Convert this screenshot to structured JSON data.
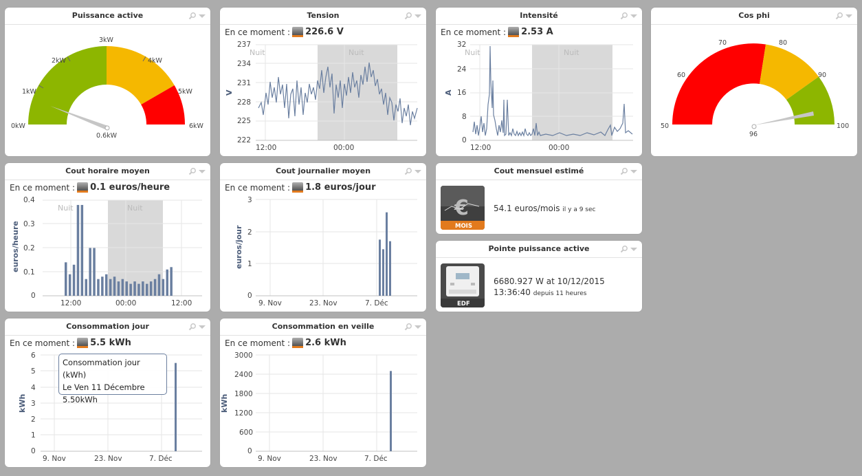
{
  "widgets": {
    "puissance": {
      "title": "Puissance active",
      "gauge_labels": [
        "0kW",
        "1kW",
        "2kW",
        "3kW",
        "4kW",
        "5kW",
        "6kW"
      ],
      "value_label": "0.6kW",
      "value": 0.6,
      "min": 0,
      "max": 6,
      "bands": [
        {
          "from": 0,
          "to": 3,
          "color": "#8db600"
        },
        {
          "from": 3,
          "to": 5,
          "color": "#f5b800"
        },
        {
          "from": 5,
          "to": 6,
          "color": "#ff0000"
        }
      ]
    },
    "tension": {
      "title": "Tension",
      "now_label": "En ce moment :",
      "now_value": "226.6 V",
      "ylabel": "V",
      "yticks": [
        "237",
        "234",
        "231",
        "228",
        "225",
        "222"
      ],
      "xticks": [
        "12:00",
        "00:00"
      ],
      "night_label": "Nuit"
    },
    "intensite": {
      "title": "Intensité",
      "now_label": "En ce moment :",
      "now_value": "2.53 A",
      "ylabel": "A",
      "yticks": [
        "32",
        "24",
        "16",
        "8",
        "0"
      ],
      "xticks": [
        "12:00",
        "00:00"
      ],
      "night_label": "Nuit"
    },
    "cosphi": {
      "title": "Cos phi",
      "gauge_labels": [
        "50",
        "60",
        "70",
        "80",
        "90",
        "100"
      ],
      "value_label": "96",
      "value": 96,
      "min": 50,
      "max": 100,
      "bands": [
        {
          "from": 50,
          "to": 80,
          "color": "#ff0000"
        },
        {
          "from": 80,
          "to": 90,
          "color": "#f5b800"
        },
        {
          "from": 90,
          "to": 100,
          "color": "#8db600"
        }
      ]
    },
    "cout_horaire": {
      "title": "Cout horaire moyen",
      "now_label": "En ce moment :",
      "now_value": "0.1 euros/heure",
      "ylabel": "euros/heure",
      "yticks": [
        "0.4",
        "0.3",
        "0.2",
        "0.1",
        "0"
      ],
      "xticks": [
        "12:00",
        "00:00",
        "12:00"
      ],
      "night_label": "Nuit"
    },
    "cout_journalier": {
      "title": "Cout journalier moyen",
      "now_label": "En ce moment :",
      "now_value": "1.8 euros/jour",
      "ylabel": "euros/jour",
      "yticks": [
        "3",
        "2",
        "1",
        "0"
      ],
      "xticks": [
        "9. Nov",
        "23. Nov",
        "7. Déc"
      ]
    },
    "cout_mensuel": {
      "title": "Cout mensuel estimé",
      "icon_caption": "MOIS",
      "value": "54.1 euros/mois",
      "ago": "il y a 9 sec"
    },
    "pointe": {
      "title": "Pointe puissance active",
      "icon_caption": "EDF",
      "line1": "6680.927 W at 10/12/2015",
      "line2": "13:36:40",
      "ago": "depuis 11 heures"
    },
    "conso_jour": {
      "title": "Consommation jour",
      "now_label": "En ce moment :",
      "now_value": "5.5 kWh",
      "ylabel": "kWh",
      "yticks": [
        "6",
        "5",
        "4",
        "3",
        "2",
        "1",
        "0"
      ],
      "xticks": [
        "9. Nov",
        "23. Nov",
        "7. Déc"
      ],
      "tooltip": {
        "line1": "Consommation jour (kWh)",
        "line2": "Le Ven 11 Décembre",
        "line3": "5.50kWh"
      }
    },
    "conso_veille": {
      "title": "Consommation en veille",
      "now_label": "En ce moment :",
      "now_value": "2.6 kWh",
      "ylabel": "kWh",
      "yticks": [
        "3000",
        "2400",
        "1800",
        "1200",
        "600",
        "0"
      ],
      "xticks": [
        "9. Nov",
        "23. Nov",
        "7. Déc"
      ]
    }
  },
  "chart_data": [
    {
      "type": "bar",
      "ylabel": "euros/heure",
      "ylim": [
        0,
        0.4
      ],
      "values": [
        0.14,
        0.09,
        0.13,
        0.38,
        0.38,
        0.07,
        0.2,
        0.2,
        0.07,
        0.08,
        0.09,
        0.07,
        0.08,
        0.06,
        0.07,
        0.06,
        0.05,
        0.06,
        0.05,
        0.06,
        0.05,
        0.06,
        0.07,
        0.09,
        0.07,
        0.11,
        0.12
      ]
    },
    {
      "type": "bar",
      "ylabel": "euros/jour",
      "ylim": [
        0,
        3
      ],
      "values": [
        1.75,
        1.45,
        2.6,
        1.7
      ]
    },
    {
      "type": "bar",
      "ylabel": "kWh",
      "ylim": [
        0,
        6
      ],
      "values": [
        5.5
      ]
    },
    {
      "type": "bar",
      "ylabel": "kWh",
      "ylim": [
        0,
        3000
      ],
      "values": [
        2500
      ]
    }
  ],
  "colors": {
    "series": "#6a7fa0",
    "night": "#d9d9d9",
    "grid": "#e6e6e6"
  }
}
